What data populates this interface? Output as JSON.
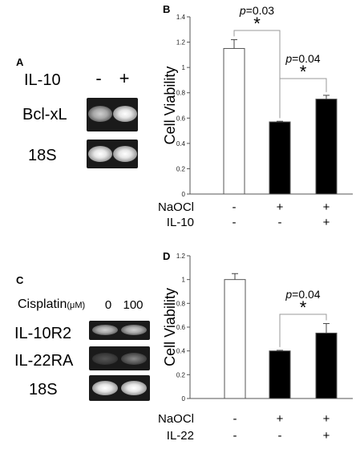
{
  "panel_a": {
    "letter": "A",
    "treatment_label": "IL-10",
    "lanes": [
      "-",
      "+"
    ],
    "rows": [
      {
        "label": "Bcl-xL",
        "bands": [
          "mid",
          "strong"
        ]
      },
      {
        "label": "18S",
        "bands": [
          "strong",
          "strong"
        ]
      }
    ]
  },
  "panel_c": {
    "letter": "C",
    "treatment_label": "Cisplatin",
    "treatment_unit": "(μM)",
    "lanes": [
      "0",
      "100"
    ],
    "rows": [
      {
        "label": "IL-10R2",
        "bands": [
          "mid",
          "mid"
        ]
      },
      {
        "label": "IL-22RA",
        "bands": [
          "veryfaint",
          "faint"
        ]
      },
      {
        "label": "18S",
        "bands": [
          "strong",
          "strong"
        ]
      }
    ]
  },
  "chart_data": [
    {
      "panel": "B",
      "type": "bar",
      "ylabel": "Cell Viability",
      "ylim": [
        0,
        1.4
      ],
      "yticks": [
        "0",
        "0.2",
        "0.4",
        "0.6",
        "0.8",
        "1",
        "1.2",
        "1.4"
      ],
      "categories": [
        "1",
        "2",
        "3"
      ],
      "values": [
        1.15,
        0.57,
        0.75
      ],
      "errors": [
        0.07,
        0.005,
        0.03
      ],
      "colors": [
        "#ffffff",
        "#000000",
        "#000000"
      ],
      "conditions": [
        {
          "label": "NaOCl",
          "signs": [
            "-",
            "+",
            "+"
          ]
        },
        {
          "label": "IL-10",
          "signs": [
            "-",
            "-",
            "+"
          ]
        }
      ],
      "annotations": [
        {
          "from": 0,
          "to": 1,
          "text": "=0.03",
          "italic": "p",
          "star": "*"
        },
        {
          "from": 1,
          "to": 2,
          "text": "=0.04",
          "italic": "p",
          "star": "*"
        }
      ]
    },
    {
      "panel": "D",
      "type": "bar",
      "ylabel": "Cell Viability",
      "ylim": [
        0,
        1.2
      ],
      "yticks": [
        "0",
        "0.2",
        "0.4",
        "0.6",
        "0.8",
        "1",
        "1.2"
      ],
      "categories": [
        "1",
        "2",
        "3"
      ],
      "values": [
        1.0,
        0.4,
        0.55
      ],
      "errors": [
        0.05,
        0.005,
        0.08
      ],
      "colors": [
        "#ffffff",
        "#000000",
        "#000000"
      ],
      "conditions": [
        {
          "label": "NaOCl",
          "signs": [
            "-",
            "+",
            "+"
          ]
        },
        {
          "label": "IL-22",
          "signs": [
            "-",
            "-",
            "+"
          ]
        }
      ],
      "annotations": [
        {
          "from": 1,
          "to": 2,
          "text": "=0.04",
          "italic": "p",
          "star": "*"
        }
      ]
    }
  ]
}
